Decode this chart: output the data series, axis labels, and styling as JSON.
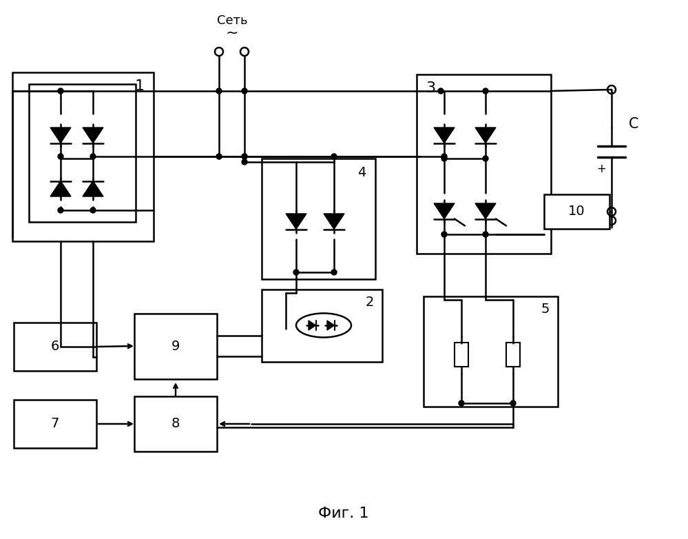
{
  "title": "Фиг. 1",
  "bg_color": "#ffffff",
  "line_color": "#000000",
  "lw": 1.8,
  "fig_width": 9.99,
  "fig_height": 7.82
}
